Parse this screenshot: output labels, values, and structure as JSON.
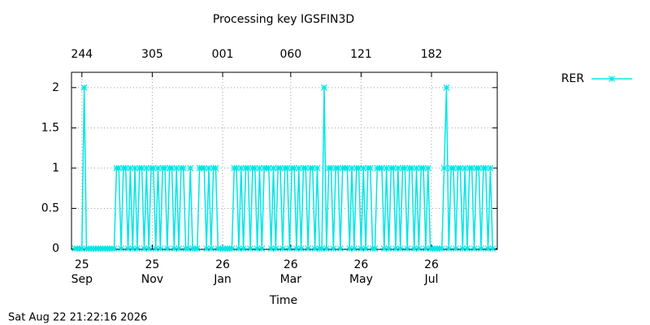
{
  "chart_data": {
    "type": "line",
    "title": "Processing key IGSFIN3D",
    "xlabel": "Time",
    "footer": "Sat Aug 22 21:22:16 2026",
    "xlim": [
      -9,
      360
    ],
    "ylim": [
      -0.01,
      2.19
    ],
    "yticks": [
      0,
      0.5,
      1,
      1.5,
      2
    ],
    "xticks": [
      {
        "value": 0,
        "label": [
          "25",
          "Sep"
        ]
      },
      {
        "value": 61,
        "label": [
          "25",
          "Nov"
        ]
      },
      {
        "value": 122,
        "label": [
          "26",
          "Jan"
        ]
      },
      {
        "value": 181,
        "label": [
          "26",
          "Mar"
        ]
      },
      {
        "value": 242,
        "label": [
          "26",
          "May"
        ]
      },
      {
        "value": 303,
        "label": [
          "26",
          "Jul"
        ]
      }
    ],
    "x2ticks": [
      {
        "value": 0,
        "label": "244"
      },
      {
        "value": 61,
        "label": "305"
      },
      {
        "value": 122,
        "label": "001"
      },
      {
        "value": 181,
        "label": "060"
      },
      {
        "value": 242,
        "label": "121"
      },
      {
        "value": 303,
        "label": "182"
      }
    ],
    "grid": true,
    "legend": "outside-top-right",
    "x": [
      -6,
      -4,
      -2,
      0,
      2,
      4,
      6,
      8,
      10,
      12,
      14,
      16,
      18,
      20,
      22,
      24,
      26,
      28,
      30,
      32,
      34,
      36,
      38,
      40,
      42,
      44,
      46,
      48,
      50,
      52,
      54,
      56,
      58,
      60,
      62,
      64,
      66,
      68,
      70,
      72,
      74,
      76,
      78,
      80,
      82,
      84,
      86,
      88,
      90,
      92,
      94,
      96,
      98,
      100,
      102,
      104,
      106,
      108,
      110,
      112,
      114,
      116,
      118,
      120,
      122,
      124,
      126,
      128,
      130,
      132,
      134,
      136,
      138,
      140,
      142,
      144,
      146,
      148,
      150,
      152,
      154,
      156,
      158,
      160,
      162,
      164,
      166,
      168,
      170,
      172,
      174,
      176,
      178,
      180,
      182,
      184,
      186,
      188,
      190,
      192,
      194,
      196,
      198,
      200,
      202,
      204,
      206,
      208,
      210,
      212,
      214,
      216,
      218,
      220,
      222,
      224,
      226,
      228,
      230,
      232,
      234,
      236,
      238,
      240,
      242,
      244,
      246,
      248,
      250,
      252,
      254,
      256,
      258,
      260,
      262,
      264,
      266,
      268,
      270,
      272,
      274,
      276,
      278,
      280,
      282,
      284,
      286,
      288,
      290,
      292,
      294,
      296,
      298,
      300,
      302,
      304,
      306,
      308,
      310,
      312,
      314,
      316,
      318,
      320,
      322,
      324,
      326,
      328,
      330,
      332,
      334,
      336,
      338,
      340,
      342,
      344,
      346,
      348,
      350,
      352,
      354,
      356
    ],
    "series": [
      {
        "name": "RER",
        "color": "#00e6e6",
        "values": [
          0,
          0,
          0,
          0,
          2,
          0,
          0,
          0,
          0,
          0,
          0,
          0,
          0,
          0,
          0,
          0,
          0,
          0,
          1,
          1,
          0,
          1,
          1,
          0,
          1,
          0,
          1,
          0,
          1,
          1,
          0,
          1,
          0,
          1,
          1,
          0,
          1,
          0,
          1,
          1,
          0,
          1,
          1,
          0,
          1,
          0,
          1,
          1,
          0,
          0,
          1,
          0,
          0,
          0,
          1,
          1,
          1,
          0,
          1,
          0,
          1,
          1,
          0,
          0,
          0,
          0,
          0,
          0,
          0,
          1,
          1,
          0,
          1,
          0,
          1,
          1,
          0,
          1,
          1,
          0,
          1,
          0,
          1,
          1,
          1,
          0,
          1,
          0,
          1,
          1,
          0,
          1,
          1,
          0,
          1,
          1,
          0,
          1,
          0,
          1,
          1,
          0,
          1,
          1,
          0,
          1,
          0,
          0,
          2,
          0,
          1,
          1,
          0,
          1,
          1,
          0,
          1,
          1,
          1,
          0,
          1,
          0,
          1,
          1,
          0,
          1,
          0,
          1,
          1,
          0,
          0,
          1,
          1,
          1,
          0,
          1,
          0,
          1,
          1,
          0,
          1,
          0,
          1,
          1,
          0,
          1,
          1,
          0,
          1,
          0,
          1,
          1,
          0,
          1,
          0,
          0,
          0,
          0,
          0,
          0,
          1,
          2,
          0,
          1,
          1,
          0,
          1,
          1,
          0,
          1,
          0,
          1,
          1,
          0,
          1,
          1,
          0,
          1,
          1,
          0,
          1,
          0
        ]
      }
    ]
  }
}
